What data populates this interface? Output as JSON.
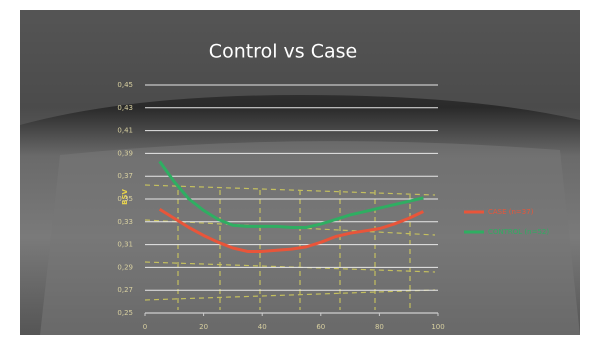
{
  "chart_data": {
    "type": "line",
    "title": "Control vs Case",
    "y_label": "BSV",
    "x": [
      5,
      10,
      15,
      20,
      25,
      30,
      35,
      40,
      45,
      50,
      55,
      60,
      65,
      70,
      75,
      80,
      85,
      90,
      95
    ],
    "series": [
      {
        "name": "CASE (n=37)",
        "color": "#e8553a",
        "values": [
          0.341,
          0.333,
          0.325,
          0.318,
          0.312,
          0.307,
          0.304,
          0.304,
          0.305,
          0.306,
          0.308,
          0.312,
          0.317,
          0.32,
          0.322,
          0.324,
          0.328,
          0.333,
          0.339
        ]
      },
      {
        "name": "CONTROL (n=52)",
        "color": "#2fae62",
        "values": [
          0.383,
          0.365,
          0.35,
          0.34,
          0.332,
          0.327,
          0.326,
          0.326,
          0.326,
          0.325,
          0.325,
          0.328,
          0.332,
          0.336,
          0.339,
          0.342,
          0.345,
          0.348,
          0.351
        ]
      }
    ],
    "xlim": [
      0,
      100
    ],
    "xticks": [
      0,
      20,
      40,
      60,
      80,
      100
    ],
    "ylim": [
      0.25,
      0.45
    ],
    "yticks": [
      {
        "value": 0.25,
        "label": "0,25"
      },
      {
        "value": 0.27,
        "label": "0,27"
      },
      {
        "value": 0.29,
        "label": "0,29"
      },
      {
        "value": 0.31,
        "label": "0,31"
      },
      {
        "value": 0.33,
        "label": "0,33"
      },
      {
        "value": 0.35,
        "label": "0,35"
      },
      {
        "value": 0.37,
        "label": "0,37"
      },
      {
        "value": 0.39,
        "label": "0,39"
      },
      {
        "value": 0.41,
        "label": "0,41"
      },
      {
        "value": 0.43,
        "label": "0,43"
      },
      {
        "value": 0.45,
        "label": "0,45"
      }
    ],
    "grid": true
  }
}
